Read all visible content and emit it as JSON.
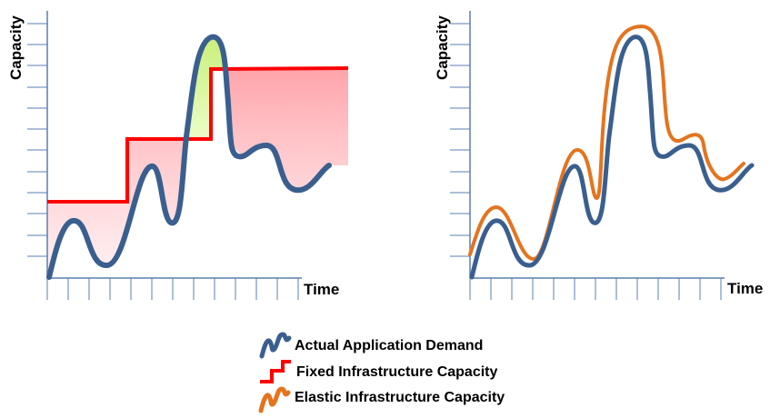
{
  "charts": {
    "left": {
      "ylabel": "Capacity",
      "xlabel": "Time",
      "description": "Fixed capacity vs actual demand"
    },
    "right": {
      "ylabel": "Capacity",
      "xlabel": "Time",
      "description": "Elastic capacity vs actual demand"
    }
  },
  "legend": {
    "items": [
      {
        "label": "Actual Application Demand",
        "color": "#3a5f8f",
        "icon": "wave-icon"
      },
      {
        "label": "Fixed Infrastructure Capacity",
        "color": "#ff0000",
        "icon": "step-icon"
      },
      {
        "label": "Elastic Infrastructure Capacity",
        "color": "#e4741f",
        "icon": "wave-icon"
      }
    ]
  },
  "colors": {
    "demand": "#3a5f8f",
    "fixed": "#ff0000",
    "elastic": "#e4741f",
    "over_provision_fill": "#ffb3b8",
    "under_provision_fill": "#d6f59a",
    "axis": "#5a7fb0"
  }
}
